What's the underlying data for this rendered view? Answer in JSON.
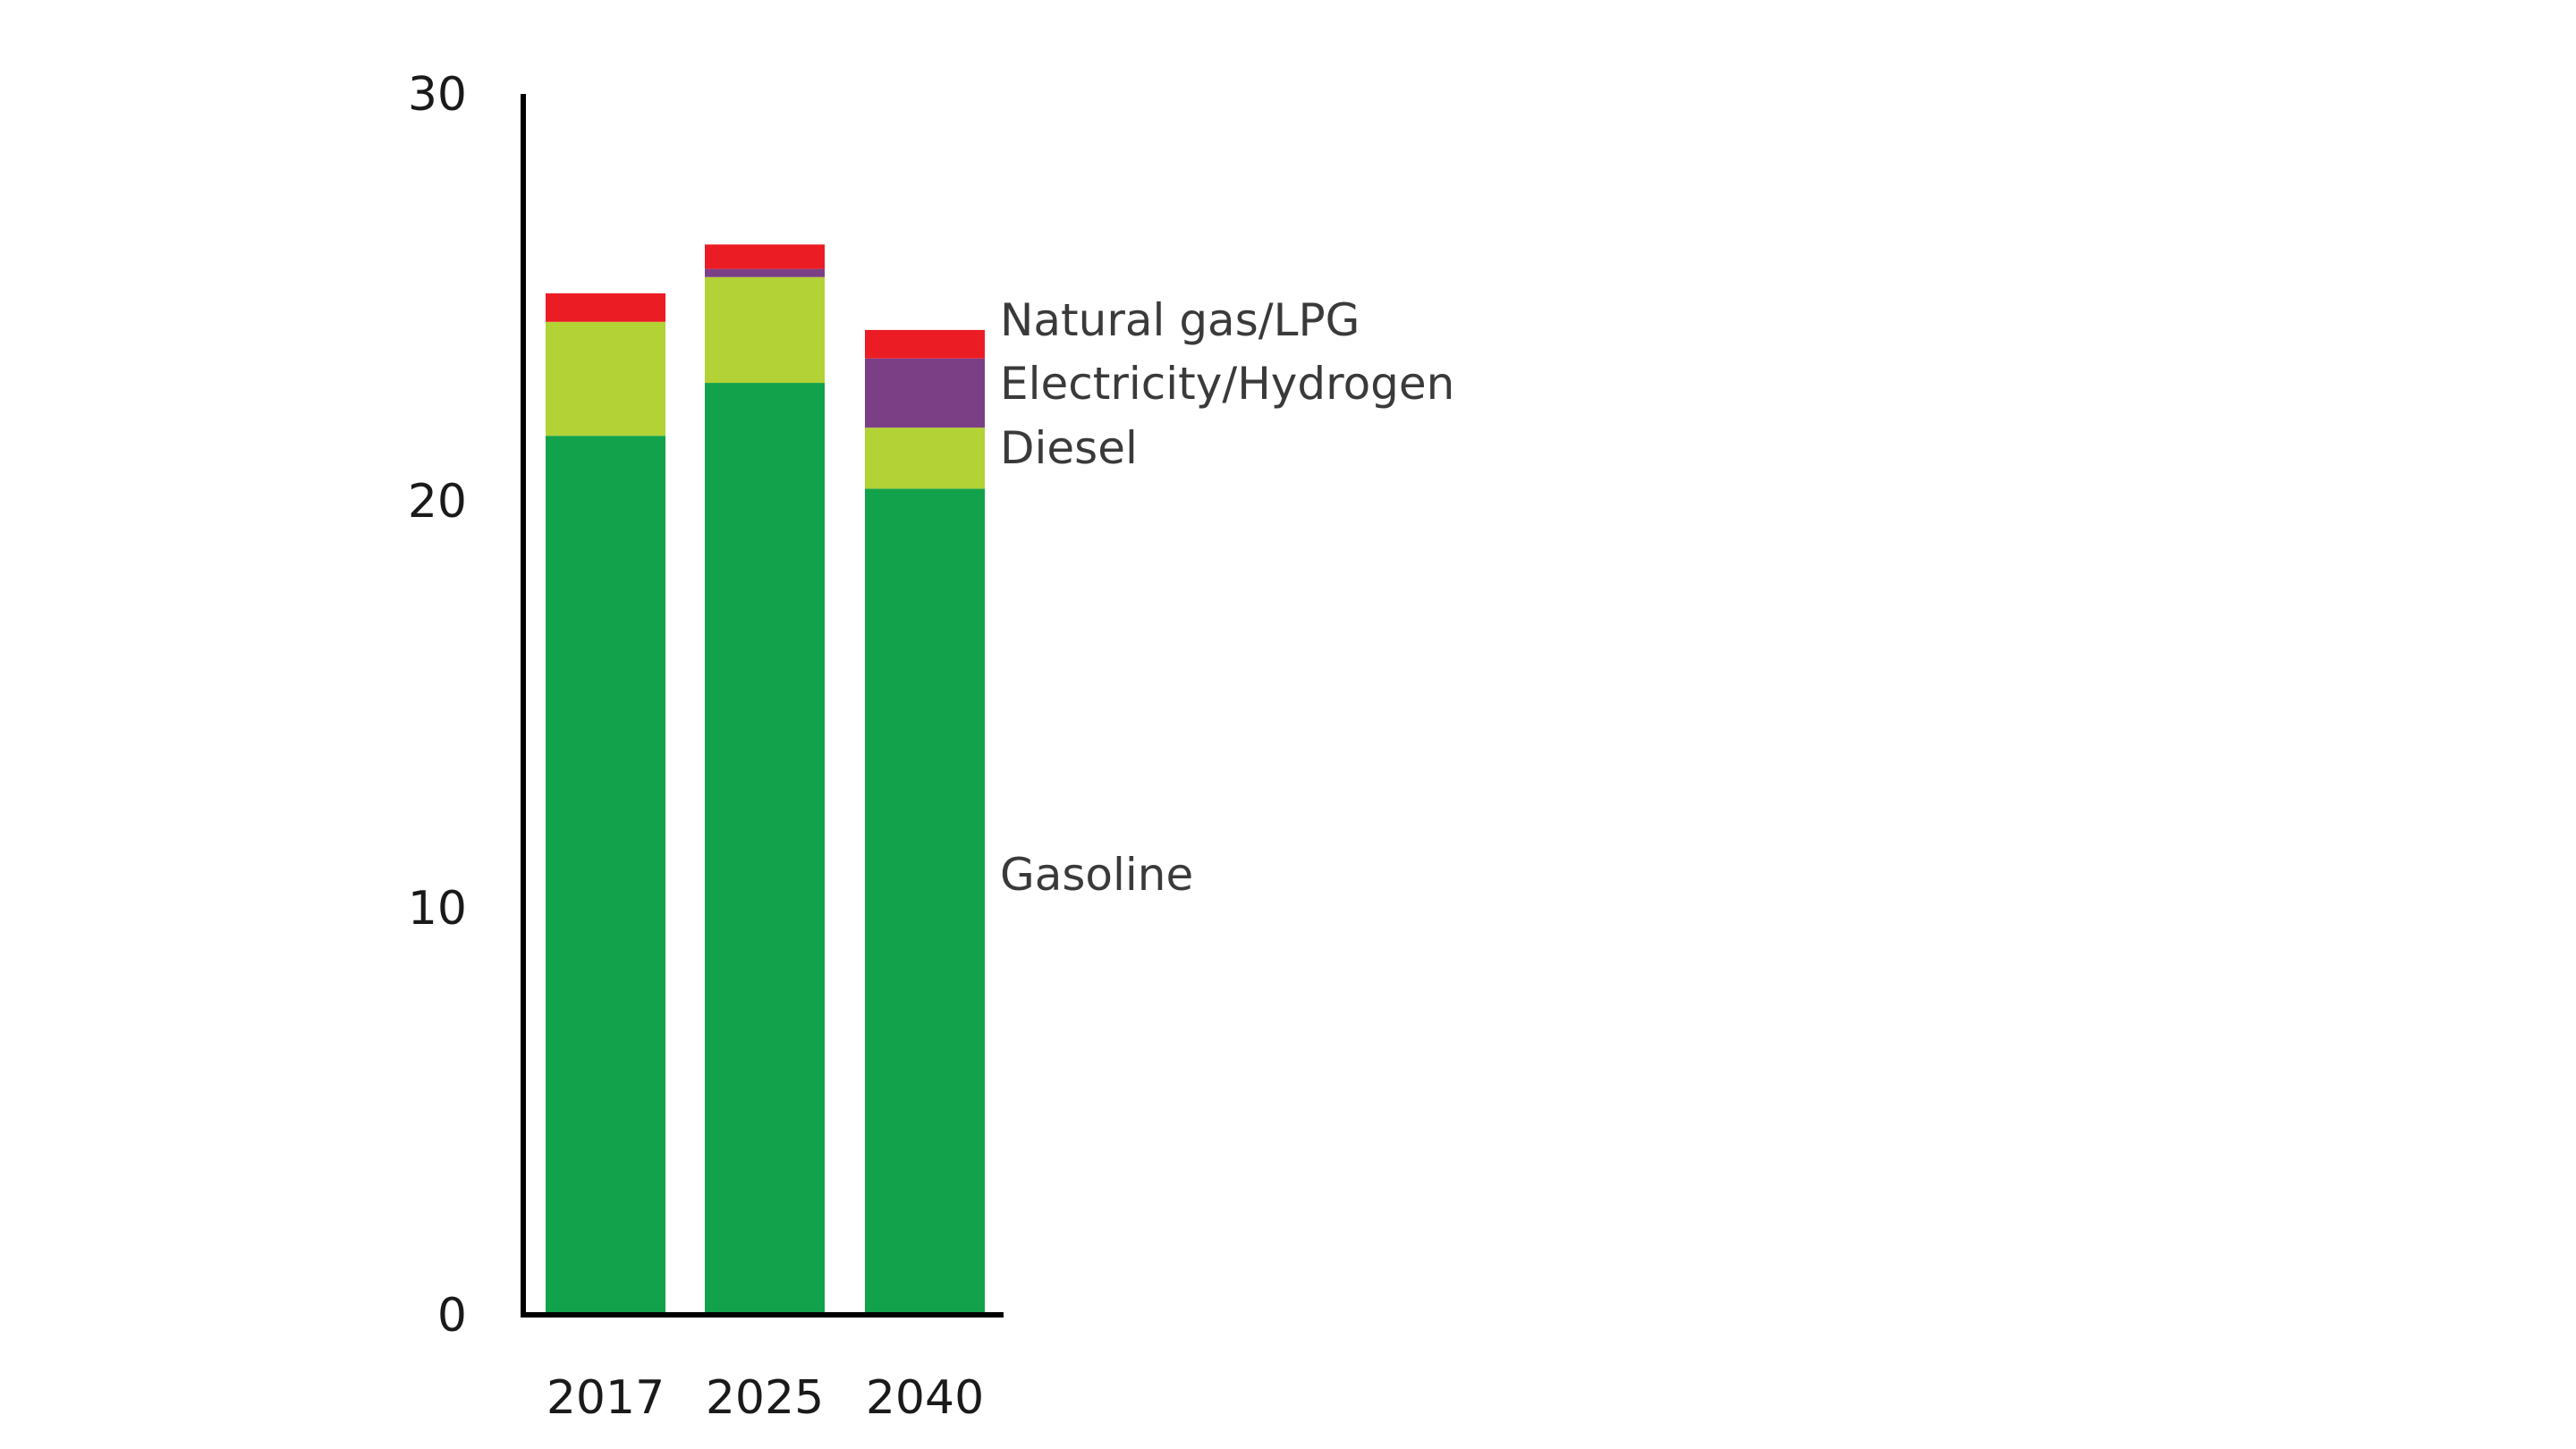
{
  "chart_data": {
    "type": "bar",
    "stacked": true,
    "categories": [
      "2017",
      "2025",
      "2040"
    ],
    "series": [
      {
        "name": "Gasoline",
        "color": "#12a24b",
        "values": [
          21.6,
          22.9,
          20.3
        ]
      },
      {
        "name": "Diesel",
        "color": "#b2d235",
        "values": [
          2.8,
          2.6,
          1.5
        ]
      },
      {
        "name": "Electricity/Hydrogen",
        "color": "#7b3f86",
        "values": [
          0.0,
          0.2,
          1.7
        ]
      },
      {
        "name": "Natural gas/LPG",
        "color": "#ec1c24",
        "values": [
          0.7,
          0.6,
          0.7
        ]
      }
    ],
    "ylim": [
      0,
      30
    ],
    "yticks": [
      "0",
      "10",
      "20",
      "30"
    ],
    "legend": "direct labels right of last bar",
    "grid": false,
    "title": "",
    "xlabel": "",
    "ylabel": ""
  }
}
